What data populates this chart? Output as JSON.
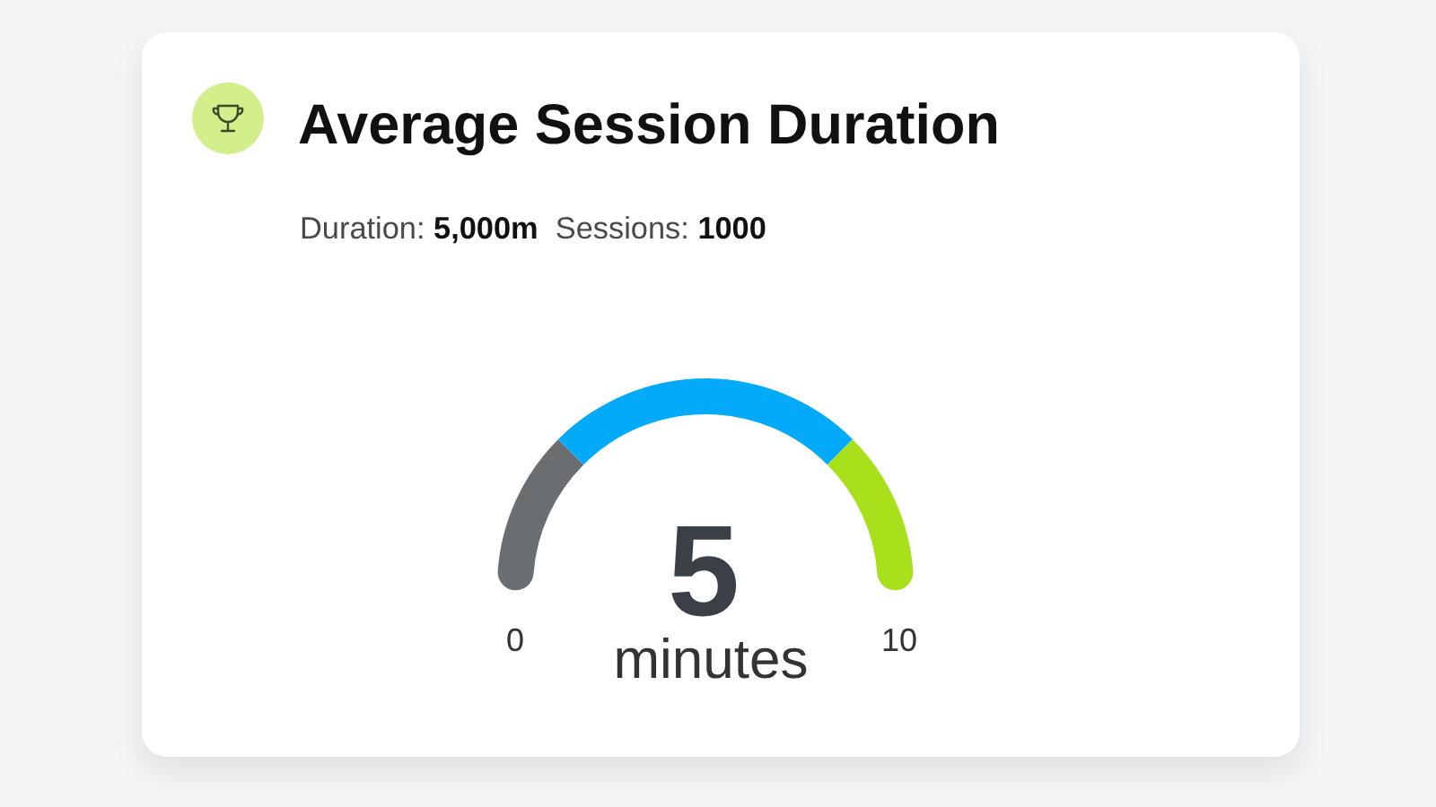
{
  "chart_data": {
    "type": "donut",
    "title": "Average Session Duration",
    "subtitle": "Duration: 5,000m  Sessions: 1000",
    "categories": [
      null,
      null,
      null
    ],
    "values": [
      25,
      50,
      25
    ],
    "colors": [
      "#6b6e71",
      "#03aaf9",
      "#a8e01c"
    ],
    "annotations": [
      "0",
      "10",
      "5",
      "minutes"
    ]
  }
}
